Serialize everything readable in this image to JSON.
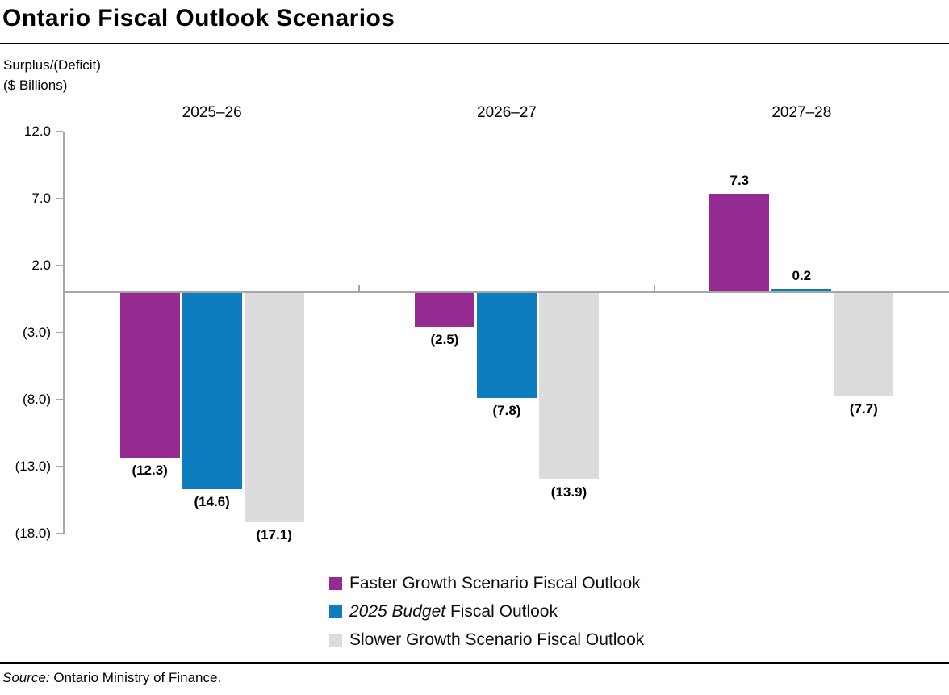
{
  "title": "Ontario Fiscal Outlook Scenarios",
  "y_axis": {
    "unit_line1": "Surplus/(Deficit)",
    "unit_line2": "($ Billions)",
    "tick_labels": [
      "12.0",
      "7.0",
      "2.0",
      "(3.0)",
      "(8.0)",
      "(13.0)",
      "(18.0)"
    ],
    "tick_values": [
      12,
      7,
      2,
      -3,
      -8,
      -13,
      -18
    ]
  },
  "source": {
    "prefix": "Source:",
    "text": " Ontario Ministry of Finance."
  },
  "colors": {
    "faster_growth": "#952B90",
    "budget_blue": "#0E7DBE",
    "slower_growth": "#DCDCDC",
    "axis_gray": "#A6A6A6",
    "rule_black": "#000000",
    "background": "#FFFFFF",
    "text": "#000000"
  },
  "chart_data": {
    "type": "bar",
    "title": "Ontario Fiscal Outlook Scenarios",
    "ylabel": "Surplus/(Deficit) ($ Billions)",
    "ylim": [
      -18,
      12
    ],
    "y_tick_interval": 5,
    "grid": false,
    "legend_position": "bottom",
    "categories": [
      "2025–26",
      "2026–27",
      "2027–28"
    ],
    "series": [
      {
        "name": "Faster Growth Scenario Fiscal Outlook",
        "color": "#952B90",
        "values": [
          -12.3,
          -2.5,
          7.3
        ],
        "value_labels": [
          "(12.3)",
          "(2.5)",
          "7.3"
        ],
        "legend_italic": "",
        "legend_text": "Faster Growth Scenario Fiscal Outlook"
      },
      {
        "name": "2025 Budget Fiscal Outlook",
        "color": "#0E7DBE",
        "values": [
          -14.6,
          -7.8,
          0.2
        ],
        "value_labels": [
          "(14.6)",
          "(7.8)",
          "0.2"
        ],
        "legend_italic": "2025 Budget",
        "legend_text": " Fiscal Outlook"
      },
      {
        "name": "Slower Growth Scenario Fiscal Outlook",
        "color": "#DCDCDC",
        "values": [
          -17.1,
          -13.9,
          -7.7
        ],
        "value_labels": [
          "(17.1)",
          "(13.9)",
          "(7.7)"
        ],
        "legend_italic": "",
        "legend_text": "Slower Growth Scenario Fiscal Outlook"
      }
    ]
  }
}
